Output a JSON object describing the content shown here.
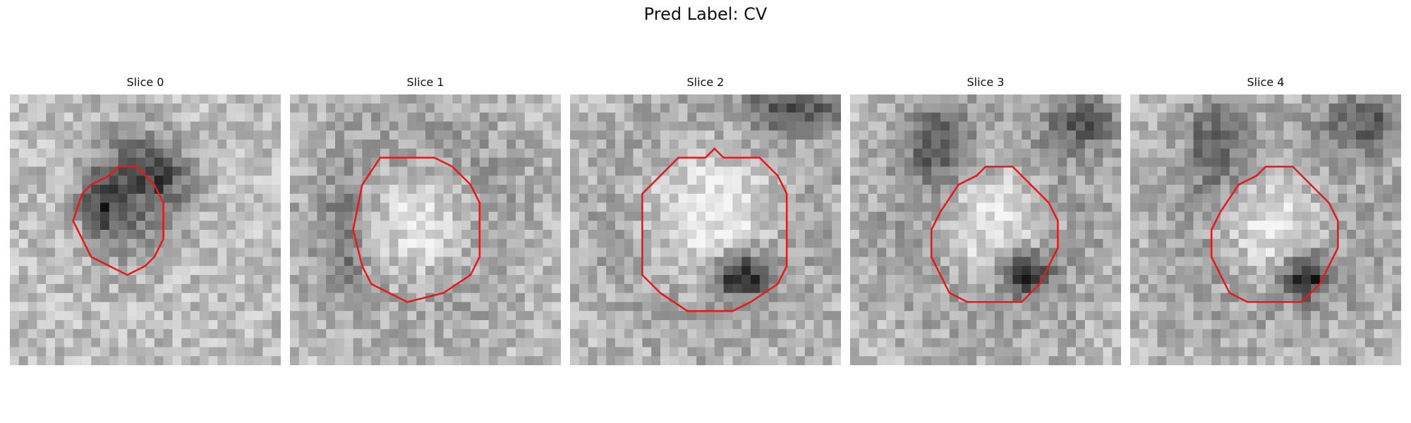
{
  "figure": {
    "title": "Pred Label: CV"
  },
  "panels": [
    {
      "title": "Slice 0",
      "blobs": [
        {
          "cx": 13.5,
          "cy": 11.0,
          "rx": 5.0,
          "ry": 6.0,
          "strength": -120
        },
        {
          "cx": 10.0,
          "cy": 12.5,
          "rx": 2.0,
          "ry": 3.0,
          "strength": -70
        },
        {
          "cx": 17.0,
          "cy": 8.5,
          "rx": 3.0,
          "ry": 3.0,
          "strength": -70
        },
        {
          "cx": 14.0,
          "cy": 11.5,
          "rx": 2.5,
          "ry": 3.0,
          "strength": 40
        }
      ],
      "contour": [
        [
          11,
          9
        ],
        [
          12,
          8
        ],
        [
          14,
          8
        ],
        [
          15,
          9
        ],
        [
          16,
          10
        ],
        [
          17,
          12
        ],
        [
          17,
          16
        ],
        [
          16,
          18
        ],
        [
          15,
          19
        ],
        [
          13,
          20
        ],
        [
          11,
          19
        ],
        [
          9,
          18
        ],
        [
          8,
          16
        ],
        [
          7,
          14
        ],
        [
          8,
          11
        ],
        [
          9,
          10
        ]
      ]
    },
    {
      "title": "Slice 1",
      "blobs": [
        {
          "cx": 14.0,
          "cy": 13.5,
          "rx": 10.0,
          "ry": 11.0,
          "strength": -110
        },
        {
          "cx": 14.0,
          "cy": 14.0,
          "rx": 6.5,
          "ry": 7.5,
          "strength": 150
        },
        {
          "cx": 6.0,
          "cy": 16.0,
          "rx": 2.0,
          "ry": 5.0,
          "strength": -60
        }
      ],
      "contour": [
        [
          10,
          7
        ],
        [
          16,
          7
        ],
        [
          18,
          8
        ],
        [
          20,
          10
        ],
        [
          21,
          12
        ],
        [
          21,
          18
        ],
        [
          20,
          20
        ],
        [
          17,
          22
        ],
        [
          13,
          23
        ],
        [
          11,
          22
        ],
        [
          9,
          21
        ],
        [
          8,
          19
        ],
        [
          7,
          15
        ],
        [
          8,
          10
        ]
      ]
    },
    {
      "title": "Slice 2",
      "blobs": [
        {
          "cx": 15.5,
          "cy": 14.0,
          "rx": 11.5,
          "ry": 12.0,
          "strength": -110
        },
        {
          "cx": 15.5,
          "cy": 13.5,
          "rx": 8.0,
          "ry": 8.5,
          "strength": 160
        },
        {
          "cx": 19.0,
          "cy": 20.0,
          "rx": 3.0,
          "ry": 2.5,
          "strength": -150
        },
        {
          "cx": 25.0,
          "cy": 1.5,
          "rx": 6.0,
          "ry": 2.5,
          "strength": -100
        }
      ],
      "contour": [
        [
          12,
          7
        ],
        [
          15,
          7
        ],
        [
          16,
          6
        ],
        [
          17,
          7
        ],
        [
          21,
          7
        ],
        [
          23,
          9
        ],
        [
          24,
          11
        ],
        [
          24,
          19
        ],
        [
          23,
          21
        ],
        [
          20,
          23
        ],
        [
          18,
          24
        ],
        [
          13,
          24
        ],
        [
          10,
          22
        ],
        [
          8,
          20
        ],
        [
          8,
          11
        ],
        [
          10,
          9
        ]
      ]
    },
    {
      "title": "Slice 3",
      "blobs": [
        {
          "cx": 16.0,
          "cy": 14.5,
          "rx": 11.0,
          "ry": 11.0,
          "strength": -110
        },
        {
          "cx": 16.0,
          "cy": 14.5,
          "rx": 7.0,
          "ry": 7.5,
          "strength": 150
        },
        {
          "cx": 19.5,
          "cy": 20.0,
          "rx": 2.5,
          "ry": 2.5,
          "strength": -150
        },
        {
          "cx": 9.5,
          "cy": 5.5,
          "rx": 3.0,
          "ry": 5.0,
          "strength": -80
        },
        {
          "cx": 26.0,
          "cy": 3.0,
          "rx": 4.0,
          "ry": 3.0,
          "strength": -90
        }
      ],
      "contour": [
        [
          12,
          10
        ],
        [
          14,
          9
        ],
        [
          15,
          8
        ],
        [
          18,
          8
        ],
        [
          20,
          10
        ],
        [
          22,
          12
        ],
        [
          23,
          14
        ],
        [
          23,
          17
        ],
        [
          22,
          19
        ],
        [
          21,
          21
        ],
        [
          19,
          23
        ],
        [
          13,
          23
        ],
        [
          11,
          22
        ],
        [
          10,
          20
        ],
        [
          9,
          18
        ],
        [
          9,
          15
        ],
        [
          10,
          13
        ]
      ]
    },
    {
      "title": "Slice 4",
      "blobs": [
        {
          "cx": 16.0,
          "cy": 14.5,
          "rx": 11.0,
          "ry": 11.0,
          "strength": -110
        },
        {
          "cx": 16.0,
          "cy": 14.5,
          "rx": 7.0,
          "ry": 7.5,
          "strength": 150
        },
        {
          "cx": 19.5,
          "cy": 20.0,
          "rx": 2.5,
          "ry": 2.5,
          "strength": -150
        },
        {
          "cx": 9.5,
          "cy": 5.5,
          "rx": 3.0,
          "ry": 5.0,
          "strength": -80
        },
        {
          "cx": 26.0,
          "cy": 3.0,
          "rx": 4.0,
          "ry": 3.0,
          "strength": -90
        }
      ],
      "contour": [
        [
          12,
          10
        ],
        [
          14,
          9
        ],
        [
          15,
          8
        ],
        [
          18,
          8
        ],
        [
          20,
          10
        ],
        [
          22,
          12
        ],
        [
          23,
          14
        ],
        [
          23,
          17
        ],
        [
          22,
          19
        ],
        [
          21,
          21
        ],
        [
          19,
          23
        ],
        [
          13,
          23
        ],
        [
          11,
          22
        ],
        [
          10,
          20
        ],
        [
          9,
          18
        ],
        [
          9,
          15
        ],
        [
          10,
          13
        ]
      ]
    }
  ],
  "colors": {
    "contour": "#e41a1c",
    "background": "#ffffff"
  }
}
